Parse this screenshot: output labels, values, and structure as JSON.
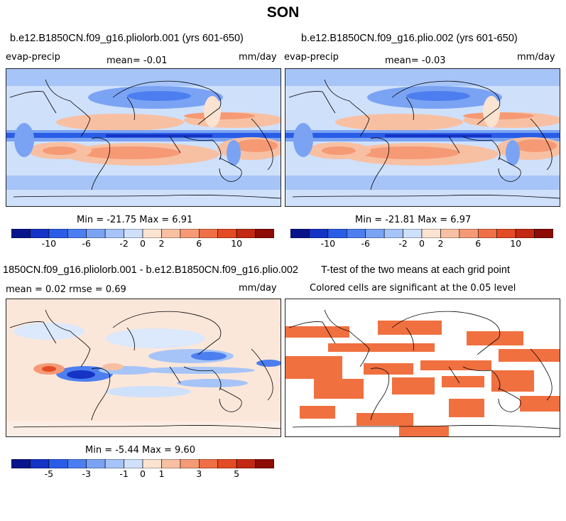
{
  "title": "SON",
  "colors": {
    "diverging": [
      "#08148a",
      "#1533c4",
      "#2a5de6",
      "#4c7ef0",
      "#7aa3f3",
      "#a6c4f8",
      "#cfe0fb",
      "#fbe3d2",
      "#f8c0a2",
      "#f59a75",
      "#ef6f47",
      "#e34b24",
      "#c32812",
      "#8c0c06"
    ],
    "significant": "#f07040",
    "coast": "#000000"
  },
  "panels": [
    {
      "title": "b.e12.B1850CN.f09_g16.pliolorb.001 (yrs 601-650)",
      "left_label": "evap-precip",
      "center_label": "mean=  -0.01",
      "right_label": "mm/day",
      "minmax": "Min = -21.75 Max =   6.91"
    },
    {
      "title": "b.e12.B1850CN.f09_g16.plio.002 (yrs 601-650)",
      "left_label": "evap-precip",
      "center_label": "mean=  -0.03",
      "right_label": "mm/day",
      "minmax": "Min = -21.81 Max =   6.97"
    },
    {
      "title": "1850CN.f09_g16.pliolorb.001 - b.e12.B1850CN.f09_g16.plio.002",
      "left_label": "mean =   0.02    rmse =   0.69",
      "right_label": "mm/day",
      "minmax": "Min = -5.44 Max =  9.60"
    },
    {
      "title": "T-test of the two means at each grid point",
      "subtitle": "Colored cells are significant at the 0.05 level"
    }
  ],
  "colorbar_top": {
    "labels": [
      "-10",
      "-6",
      "-2",
      "0",
      "2",
      "6",
      "10"
    ]
  },
  "colorbar_diff": {
    "labels": [
      "-5",
      "-3",
      "-1",
      "0",
      "1",
      "3",
      "5"
    ]
  },
  "chart_data": [
    {
      "type": "heatmap",
      "title": "b.e12.B1850CN.f09_g16.pliolorb.001 (yrs 601-650)",
      "variable": "evap-precip",
      "units": "mm/day",
      "mean": -0.01,
      "min": -21.75,
      "max": 6.91,
      "colorbar_ticks": [
        -10,
        -6,
        -2,
        0,
        2,
        6,
        10
      ]
    },
    {
      "type": "heatmap",
      "title": "b.e12.B1850CN.f09_g16.plio.002 (yrs 601-650)",
      "variable": "evap-precip",
      "units": "mm/day",
      "mean": -0.03,
      "min": -21.81,
      "max": 6.97,
      "colorbar_ticks": [
        -10,
        -6,
        -2,
        0,
        2,
        6,
        10
      ]
    },
    {
      "type": "heatmap",
      "title": "1850CN.f09_g16.pliolorb.001 - b.e12.B1850CN.f09_g16.plio.002",
      "units": "mm/day",
      "mean": 0.02,
      "rmse": 0.69,
      "min": -5.44,
      "max": 9.6,
      "colorbar_ticks": [
        -5,
        -3,
        -1,
        0,
        1,
        3,
        5
      ]
    },
    {
      "type": "heatmap",
      "title": "T-test of the two means at each grid point",
      "subtitle": "Colored cells are significant at the 0.05 level"
    }
  ]
}
